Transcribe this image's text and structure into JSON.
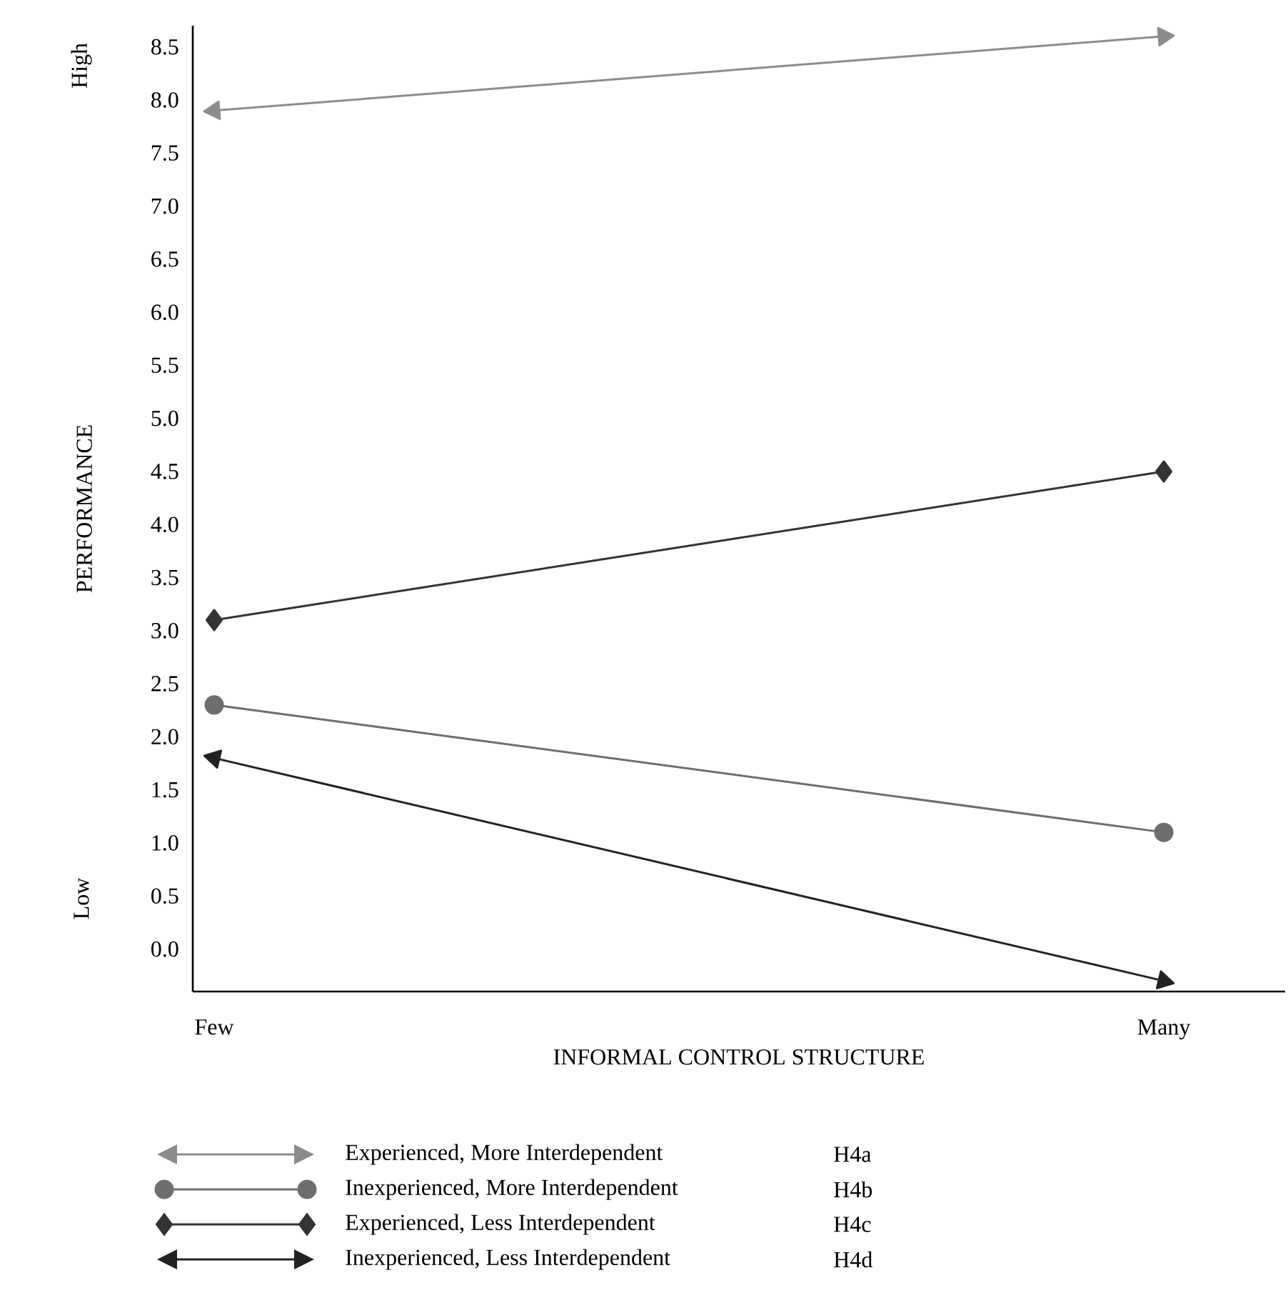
{
  "chart_data": {
    "type": "line",
    "xlabel": "INFORMAL CONTROL STRUCTURE",
    "ylabel": "PERFORMANCE",
    "categories": [
      "Few",
      "Many"
    ],
    "series": [
      {
        "name": "Experienced, More Interdependent",
        "color": "#8c8c8c",
        "marker": "triangle",
        "values": [
          7.9,
          8.6
        ]
      },
      {
        "name": "Inexperienced, More Interdependent",
        "color": "#6e6e6e",
        "marker": "circle",
        "values": [
          2.3,
          1.1
        ]
      },
      {
        "name": "Experienced, Less Interdependent",
        "color": "#333333",
        "marker": "diamond",
        "values": [
          3.1,
          4.5
        ]
      },
      {
        "name": "Inexperienced, Less Interdependent",
        "color": "#222222",
        "marker": "triangle",
        "values": [
          1.8,
          -0.3
        ]
      }
    ],
    "ylim": [
      -0.4,
      8.7
    ],
    "yticks": [
      {
        "value": 0,
        "label": "0.0"
      },
      {
        "value": 0.5,
        "label": "0.5"
      },
      {
        "value": 1,
        "label": "1.0"
      },
      {
        "value": 1.5,
        "label": "1.5"
      },
      {
        "value": 2,
        "label": "2.0"
      },
      {
        "value": 2.5,
        "label": "2.5"
      },
      {
        "value": 3,
        "label": "3.0"
      },
      {
        "value": 3.5,
        "label": "3.5"
      },
      {
        "value": 4,
        "label": "4.0"
      },
      {
        "value": 4.5,
        "label": "4.5"
      },
      {
        "value": 5,
        "label": "5.0"
      },
      {
        "value": 5.5,
        "label": "5.5"
      },
      {
        "value": 6,
        "label": "6.0"
      },
      {
        "value": 6.5,
        "label": "6.5"
      },
      {
        "value": 7,
        "label": "7.0"
      },
      {
        "value": 7.5,
        "label": "7.5"
      },
      {
        "value": 8,
        "label": "8.0"
      },
      {
        "value": 8.5,
        "label": "8.5"
      }
    ],
    "annotations": [
      "High",
      "Low",
      "H4a",
      "H4b",
      "H4c",
      "H4d"
    ],
    "legend": "bottom",
    "grid": false,
    "line_style": "solid"
  }
}
